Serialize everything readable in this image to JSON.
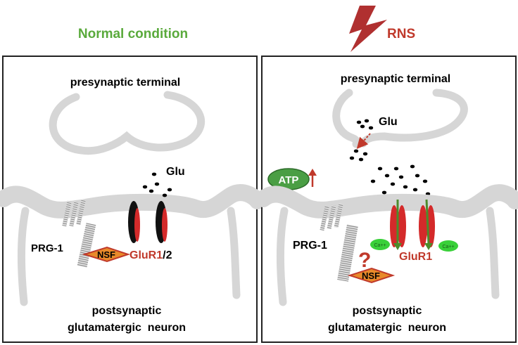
{
  "left_panel": {
    "heading": "Normal condition",
    "presynaptic_label": "presynaptic terminal",
    "glu_label": "Glu",
    "prg_label": "PRG-1",
    "nsf_label": "NSF",
    "glur_label_red": "GluR1",
    "glur_label_suffix": "/2",
    "postsynaptic_line1": "postsynaptic",
    "postsynaptic_line2": "glutamatergic  neuron"
  },
  "right_panel": {
    "heading": "RNS",
    "presynaptic_label": "presynaptic terminal",
    "glu_label": "Glu",
    "atp_label": "ATP",
    "prg_label": "PRG-1",
    "question_mark": "?",
    "nsf_label": "NSF",
    "glur_label": "GluR1",
    "calcium_label": "Ca++",
    "postsynaptic_line1": "postsynaptic",
    "postsynaptic_line2": "glutamatergic  neuron"
  },
  "colors": {
    "heading_green": "#5aaa3c",
    "heading_red": "#c0392b",
    "membrane_gray": "#d6d6d6",
    "receptor_red": "#d42a2a",
    "receptor_black": "#111111",
    "arrow_green": "#4c8c2b",
    "atp_green": "#4a9e44",
    "calcium_green": "#39d039",
    "nsf_fill": "#e88a2a",
    "bolt_red": "#b03030"
  }
}
